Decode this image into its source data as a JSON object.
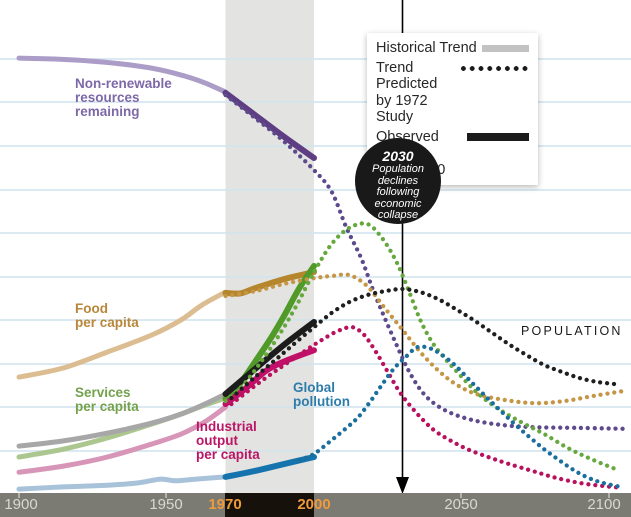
{
  "palette": {
    "background": "#ffffff",
    "gridline": "#cfe4ee",
    "shaded_band": "#e3e3e1",
    "axis_bar": "#7b7b74",
    "axis_bar_dark": "#17110b",
    "axis_label": "#d9d8d2",
    "axis_label_highlight": "#f09a3c",
    "axis_tick": "#b2b2aa",
    "annotation_circle_bg": "#191919",
    "legend_swatch_historical": "#c2c2c2",
    "legend_swatch_predicted": "#1b1b1b",
    "legend_swatch_observed": "#1c1c1c",
    "vertical_line": "#000000"
  },
  "legend": {
    "items": [
      {
        "label": "Historical Trend",
        "style": "solid-gray"
      },
      {
        "label": "Trend Predicted\nby 1972 Study",
        "style": "dotted-black"
      },
      {
        "label": "Observed Trend\n1970-2000",
        "style": "solid-black"
      }
    ]
  },
  "annotation": {
    "year": "2030",
    "text": "Population\ndeclines\nfollowing\neconomic\ncollapse"
  },
  "labels": {
    "resources": {
      "text": "Non-renewable\nresources\nremaining",
      "color": "#7d68a8"
    },
    "food": {
      "text": "Food\nper capita",
      "color": "#b8873b"
    },
    "services": {
      "text": "Services\nper capita",
      "color": "#74a14c"
    },
    "industrial": {
      "text": "Industrial\noutput\nper capita",
      "color": "#bb1666"
    },
    "pollution": {
      "text": "Global\npollution",
      "color": "#2e7cab"
    },
    "population": {
      "text": "POPULATION",
      "color": "#1a1a1a"
    }
  },
  "chart_data": {
    "type": "line",
    "title": "",
    "xlabel": "",
    "ylabel": "",
    "x_axis": {
      "range": [
        1900,
        2107
      ],
      "ticks": [
        {
          "year": 1900,
          "label": "1900",
          "highlight": false
        },
        {
          "year": 1950,
          "label": "1950",
          "highlight": false
        },
        {
          "year": 1970,
          "label": "1970",
          "highlight": true
        },
        {
          "year": 2000,
          "label": "2000",
          "highlight": true
        },
        {
          "year": 2050,
          "label": "2050",
          "highlight": false
        },
        {
          "year": 2100,
          "label": "2100",
          "highlight": false
        }
      ]
    },
    "y_axis": {
      "range": [
        0,
        105
      ],
      "note": "relative scale, unlabeled"
    },
    "grid": true,
    "shaded_region": {
      "from": 1970,
      "to": 2000
    },
    "vertical_marker_year": 2030,
    "series": [
      {
        "id": "resources-historical",
        "name": "Non-renewable resources remaining (historical)",
        "style": "solid",
        "width": 5,
        "color": "#ab9dc8",
        "points": [
          [
            1900,
            100.2
          ],
          [
            1912,
            100
          ],
          [
            1925,
            99.5
          ],
          [
            1938,
            98.6
          ],
          [
            1948,
            97.5
          ],
          [
            1956,
            96.1
          ],
          [
            1963,
            94.5
          ],
          [
            1970,
            92.4
          ]
        ]
      },
      {
        "id": "resources-observed",
        "name": "Non-renewable resources remaining (observed 1970-2000)",
        "style": "solid",
        "width": 6,
        "color": "#5e3d82",
        "points": [
          [
            1970,
            92.2
          ],
          [
            1980,
            87.1
          ],
          [
            1990,
            82.0
          ],
          [
            2000,
            77.2
          ]
        ]
      },
      {
        "id": "resources-predicted",
        "name": "Non-renewable resources remaining (predicted by 1972 study)",
        "style": "dotted",
        "width": 4.3,
        "color": "#5d4a8c",
        "points": [
          [
            1970,
            91.7
          ],
          [
            1980,
            86.4
          ],
          [
            1990,
            80.9
          ],
          [
            2000,
            74.4
          ],
          [
            2006,
            69.4
          ],
          [
            2011,
            61.1
          ],
          [
            2016,
            54.1
          ],
          [
            2020,
            46.8
          ],
          [
            2024,
            40.3
          ],
          [
            2028,
            34.1
          ],
          [
            2032,
            28.3
          ],
          [
            2037,
            23.0
          ],
          [
            2043,
            19.6
          ],
          [
            2051,
            17.3
          ],
          [
            2061,
            15.9
          ],
          [
            2073,
            15.2
          ],
          [
            2090,
            15.0
          ],
          [
            2105,
            14.8
          ]
        ]
      },
      {
        "id": "food-historical",
        "name": "Food per capita (historical)",
        "style": "solid",
        "width": 5,
        "color": "#dcbd92",
        "points": [
          [
            1900,
            26.7
          ],
          [
            1915,
            28.8
          ],
          [
            1930,
            32.5
          ],
          [
            1945,
            36.4
          ],
          [
            1955,
            39.9
          ],
          [
            1962,
            43.3
          ],
          [
            1970,
            46.3
          ]
        ]
      },
      {
        "id": "food-observed",
        "name": "Food per capita (observed 1970-2000)",
        "style": "solid",
        "width": 6,
        "color": "#b5862c",
        "points": [
          [
            1970,
            46.1
          ],
          [
            1975,
            46.0
          ],
          [
            1980,
            47.2
          ],
          [
            1990,
            49.3
          ],
          [
            2000,
            50.9
          ]
        ]
      },
      {
        "id": "food-predicted",
        "name": "Food per capita (predicted by 1972 study)",
        "style": "dotted",
        "width": 4.3,
        "color": "#c49645",
        "points": [
          [
            1970,
            45.4
          ],
          [
            1980,
            46.5
          ],
          [
            1990,
            48.2
          ],
          [
            2000,
            49.5
          ],
          [
            2006,
            50.0
          ],
          [
            2012,
            50.2
          ],
          [
            2018,
            47.7
          ],
          [
            2024,
            42.6
          ],
          [
            2030,
            37.6
          ],
          [
            2036,
            32.5
          ],
          [
            2042,
            28.3
          ],
          [
            2048,
            25.1
          ],
          [
            2055,
            22.8
          ],
          [
            2065,
            21.4
          ],
          [
            2075,
            20.7
          ],
          [
            2085,
            21.2
          ],
          [
            2095,
            22.4
          ],
          [
            2105,
            23.5
          ]
        ]
      },
      {
        "id": "services-historical",
        "name": "Services per capita (historical)",
        "style": "solid",
        "width": 5,
        "color": "#abc68e",
        "points": [
          [
            1900,
            8.3
          ],
          [
            1915,
            10.1
          ],
          [
            1930,
            12.7
          ],
          [
            1945,
            15.9
          ],
          [
            1955,
            18.2
          ],
          [
            1962,
            20.0
          ],
          [
            1970,
            21.9
          ]
        ]
      },
      {
        "id": "services-observed",
        "name": "Services per capita (observed 1970-2000)",
        "style": "solid",
        "width": 6,
        "color": "#4f9a28",
        "points": [
          [
            1970,
            21.7
          ],
          [
            1975,
            25.3
          ],
          [
            1980,
            30.2
          ],
          [
            1985,
            35.3
          ],
          [
            1990,
            41.0
          ],
          [
            1995,
            47.2
          ],
          [
            2000,
            52.3
          ]
        ]
      },
      {
        "id": "services-predicted",
        "name": "Services per capita (predicted by 1972 study)",
        "style": "dotted",
        "width": 4.3,
        "color": "#66a83d",
        "points": [
          [
            1970,
            21.2
          ],
          [
            1976,
            24.9
          ],
          [
            1982,
            30.2
          ],
          [
            1988,
            36.2
          ],
          [
            1994,
            43.1
          ],
          [
            2000,
            50.9
          ],
          [
            2006,
            57.4
          ],
          [
            2012,
            61.1
          ],
          [
            2018,
            62.0
          ],
          [
            2023,
            58.8
          ],
          [
            2028,
            53.2
          ],
          [
            2032,
            46.8
          ],
          [
            2036,
            39.9
          ],
          [
            2040,
            34.8
          ],
          [
            2044,
            31.3
          ],
          [
            2048,
            28.3
          ],
          [
            2055,
            23.3
          ],
          [
            2062,
            19.6
          ],
          [
            2070,
            16.4
          ],
          [
            2078,
            13.6
          ],
          [
            2086,
            10.4
          ],
          [
            2094,
            7.8
          ],
          [
            2103,
            5.3
          ]
        ]
      },
      {
        "id": "population-historical",
        "name": "Population (historical)",
        "style": "solid",
        "width": 5,
        "color": "#a7a7a7",
        "points": [
          [
            1900,
            10.8
          ],
          [
            1915,
            12.0
          ],
          [
            1930,
            13.8
          ],
          [
            1945,
            16.1
          ],
          [
            1955,
            18.2
          ],
          [
            1963,
            20.5
          ],
          [
            1970,
            22.8
          ]
        ]
      },
      {
        "id": "population-observed",
        "name": "Population (observed 1970-2000)",
        "style": "solid",
        "width": 6,
        "color": "#1c1c1c",
        "points": [
          [
            1970,
            22.8
          ],
          [
            1978,
            27.4
          ],
          [
            1986,
            32.0
          ],
          [
            1992,
            35.3
          ],
          [
            2000,
            39.4
          ]
        ]
      },
      {
        "id": "population-predicted",
        "name": "Population (predicted by 1972 study)",
        "style": "dotted",
        "width": 4.3,
        "color": "#1f1f1f",
        "points": [
          [
            1972,
            21.9
          ],
          [
            1980,
            26.7
          ],
          [
            1988,
            31.3
          ],
          [
            1994,
            34.8
          ],
          [
            2000,
            38.2
          ],
          [
            2006,
            41.5
          ],
          [
            2012,
            44.0
          ],
          [
            2018,
            45.6
          ],
          [
            2024,
            46.5
          ],
          [
            2030,
            47.0
          ],
          [
            2036,
            46.3
          ],
          [
            2042,
            44.7
          ],
          [
            2048,
            42.4
          ],
          [
            2054,
            39.9
          ],
          [
            2060,
            37.1
          ],
          [
            2066,
            34.3
          ],
          [
            2072,
            31.8
          ],
          [
            2078,
            29.5
          ],
          [
            2084,
            27.9
          ],
          [
            2090,
            26.5
          ],
          [
            2096,
            25.6
          ],
          [
            2102,
            25.1
          ]
        ]
      },
      {
        "id": "industrial-historical",
        "name": "Industrial output per capita (historical)",
        "style": "solid",
        "width": 5,
        "color": "#d795b7",
        "points": [
          [
            1900,
            4.8
          ],
          [
            1915,
            6.2
          ],
          [
            1930,
            8.3
          ],
          [
            1945,
            11.3
          ],
          [
            1955,
            13.6
          ],
          [
            1963,
            16.4
          ],
          [
            1970,
            19.8
          ]
        ]
      },
      {
        "id": "industrial-observed",
        "name": "Industrial output per capita (observed 1970-2000)",
        "style": "solid",
        "width": 6,
        "color": "#c20f69",
        "points": [
          [
            1970,
            20.5
          ],
          [
            1977,
            24.2
          ],
          [
            1984,
            28.3
          ],
          [
            1991,
            30.6
          ],
          [
            2000,
            32.9
          ]
        ]
      },
      {
        "id": "industrial-predicted",
        "name": "Industrial output per capita (predicted by 1972 study)",
        "style": "dotted",
        "width": 4.3,
        "color": "#b8115e",
        "points": [
          [
            1972,
            20.5
          ],
          [
            1980,
            24.7
          ],
          [
            1988,
            28.6
          ],
          [
            1996,
            32.3
          ],
          [
            2002,
            35.0
          ],
          [
            2008,
            37.3
          ],
          [
            2013,
            38.2
          ],
          [
            2017,
            36.4
          ],
          [
            2021,
            32.5
          ],
          [
            2025,
            27.9
          ],
          [
            2029,
            23.3
          ],
          [
            2033,
            19.8
          ],
          [
            2037,
            16.8
          ],
          [
            2041,
            14.3
          ],
          [
            2046,
            12.2
          ],
          [
            2052,
            10.1
          ],
          [
            2059,
            8.3
          ],
          [
            2066,
            6.7
          ],
          [
            2074,
            5.1
          ],
          [
            2082,
            3.5
          ],
          [
            2092,
            2.1
          ],
          [
            2104,
            1.2
          ]
        ]
      },
      {
        "id": "pollution-historical",
        "name": "Global pollution (historical)",
        "style": "solid",
        "width": 5,
        "color": "#a8c2da",
        "points": [
          [
            1900,
            0.9
          ],
          [
            1915,
            1.4
          ],
          [
            1930,
            1.8
          ],
          [
            1940,
            2.3
          ],
          [
            1948,
            3.2
          ],
          [
            1953,
            2.8
          ],
          [
            1960,
            3.2
          ],
          [
            1970,
            3.7
          ]
        ]
      },
      {
        "id": "pollution-observed",
        "name": "Global pollution (observed 1970-2000)",
        "style": "solid",
        "width": 6,
        "color": "#1573ad",
        "points": [
          [
            1970,
            3.7
          ],
          [
            1980,
            5.1
          ],
          [
            1990,
            6.7
          ],
          [
            2000,
            8.3
          ]
        ]
      },
      {
        "id": "pollution-predicted",
        "name": "Global pollution (predicted by 1972 study)",
        "style": "dotted",
        "width": 4.3,
        "color": "#1a6f9e",
        "points": [
          [
            1995,
            7.6
          ],
          [
            2000,
            9.0
          ],
          [
            2006,
            12.2
          ],
          [
            2011,
            15.0
          ],
          [
            2015,
            17.5
          ],
          [
            2019,
            21.0
          ],
          [
            2023,
            24.9
          ],
          [
            2027,
            28.6
          ],
          [
            2031,
            31.3
          ],
          [
            2035,
            33.6
          ],
          [
            2039,
            33.4
          ],
          [
            2043,
            32.0
          ],
          [
            2048,
            29.3
          ],
          [
            2053,
            25.8
          ],
          [
            2058,
            22.4
          ],
          [
            2063,
            19.1
          ],
          [
            2068,
            15.9
          ],
          [
            2073,
            12.9
          ],
          [
            2078,
            10.1
          ],
          [
            2083,
            7.6
          ],
          [
            2088,
            5.3
          ],
          [
            2093,
            3.5
          ],
          [
            2098,
            2.3
          ],
          [
            2104,
            1.4
          ]
        ]
      }
    ]
  }
}
